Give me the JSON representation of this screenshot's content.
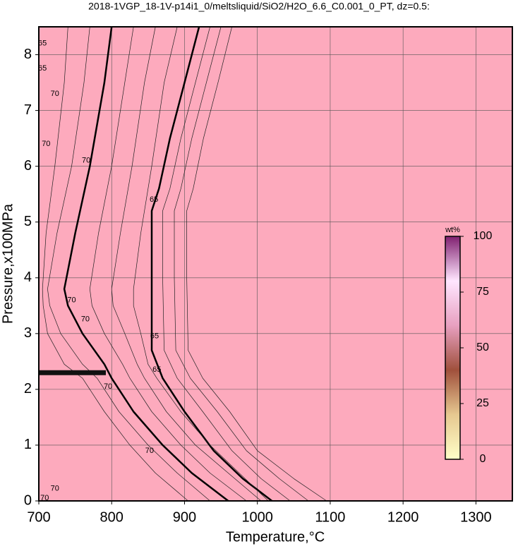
{
  "chart_data": {
    "type": "contour",
    "title": "2018-1VGP_18-1V-p14i1_0/meltsliquid/SiO2/H2O_6.6_C0.001_0_PT, dz=0.5:",
    "x_label": "Temperature,°C",
    "y_label": "Pressure,x100MPa",
    "xlim": [
      700,
      1350
    ],
    "xticks": [
      700,
      800,
      900,
      1000,
      1100,
      1200,
      1300
    ],
    "ylim": [
      0,
      8.5
    ],
    "yticks": [
      0,
      1,
      2,
      3,
      4,
      5,
      6,
      7,
      8
    ],
    "grid": true,
    "fill_color": "#fdaabd",
    "series": [
      {
        "name": "70",
        "color": "#000000",
        "width": 2.5,
        "x": [
          800,
          790,
          770,
          750,
          735,
          740,
          760,
          790,
          800,
          830,
          870,
          910,
          960
        ],
        "y": [
          8.5,
          7.5,
          6,
          4.8,
          3.8,
          3.5,
          3,
          2.45,
          2.2,
          1.6,
          1,
          0.5,
          0
        ]
      },
      {
        "name": "65",
        "color": "#000000",
        "width": 2.5,
        "x": [
          920,
          900,
          880,
          865,
          855,
          855,
          855,
          870,
          900,
          940,
          980,
          1020
        ],
        "y": [
          8.5,
          7.5,
          6.5,
          5.6,
          5.2,
          4,
          2.7,
          2.2,
          1.6,
          0.9,
          0.4,
          0
        ]
      },
      {
        "color": "#222222",
        "width": 0.7,
        "x": [
          935,
          915,
          895,
          880,
          870,
          870,
          872,
          890,
          925,
          965,
          1005,
          1045
        ],
        "y": [
          8.5,
          7.5,
          6.5,
          5.6,
          5.2,
          4,
          2.7,
          2.2,
          1.6,
          0.9,
          0.4,
          0
        ]
      },
      {
        "color": "#222222",
        "width": 0.7,
        "x": [
          950,
          930,
          910,
          895,
          886,
          886,
          888,
          908,
          945,
          985,
          1030,
          1070
        ],
        "y": [
          8.5,
          7.5,
          6.5,
          5.6,
          5.2,
          4,
          2.7,
          2.2,
          1.6,
          0.9,
          0.4,
          0
        ]
      },
      {
        "color": "#222222",
        "width": 0.7,
        "x": [
          965,
          946,
          926,
          912,
          903,
          903,
          905,
          925,
          962,
          1000,
          1050,
          1095
        ],
        "y": [
          8.5,
          7.5,
          6.5,
          5.6,
          5.2,
          4,
          2.7,
          2.2,
          1.6,
          0.9,
          0.4,
          0
        ]
      },
      {
        "color": "#222222",
        "width": 0.7,
        "x": [
          830,
          818,
          800,
          782,
          770,
          773,
          790,
          815,
          825,
          855,
          895,
          935,
          985
        ],
        "y": [
          8.5,
          7.5,
          6,
          4.8,
          3.8,
          3.5,
          3,
          2.45,
          2.2,
          1.6,
          1,
          0.5,
          0
        ]
      },
      {
        "color": "#222222",
        "width": 0.7,
        "x": [
          860,
          845,
          828,
          812,
          800,
          802,
          818,
          835,
          845,
          875,
          915,
          960,
          1005
        ],
        "y": [
          8.5,
          7.5,
          6,
          4.8,
          3.8,
          3.5,
          3,
          2.45,
          2.2,
          1.6,
          1,
          0.5,
          0
        ]
      },
      {
        "color": "#222222",
        "width": 0.7,
        "x": [
          890,
          872,
          855,
          840,
          830,
          830,
          840,
          850,
          862,
          895,
          935,
          975,
          1015
        ],
        "y": [
          8.5,
          7.5,
          6,
          4.8,
          3.8,
          3.5,
          3,
          2.45,
          2.2,
          1.6,
          1,
          0.5,
          0
        ]
      },
      {
        "color": "#222222",
        "width": 0.7,
        "x": [
          770,
          762,
          745,
          725,
          712,
          715,
          730,
          760,
          780,
          810,
          850,
          890,
          935
        ],
        "y": [
          8.5,
          7.5,
          6,
          4.8,
          3.8,
          3.5,
          3,
          2.45,
          2.2,
          1.6,
          1,
          0.5,
          0
        ]
      },
      {
        "color": "#222222",
        "width": 0.7,
        "x": [
          740,
          735,
          722,
          710,
          705,
          706,
          712,
          735,
          760,
          790,
          825,
          860,
          905
        ],
        "y": [
          8.5,
          7.5,
          6,
          4.8,
          3.8,
          3.5,
          3,
          2.45,
          2.2,
          1.6,
          1,
          0.5,
          0
        ]
      },
      {
        "color": "#111111",
        "width": 7,
        "x": [
          700,
          792
        ],
        "y": [
          2.3,
          2.3
        ]
      }
    ],
    "contour_labels": [
      {
        "text": "65",
        "x": 705,
        "y": 8.2
      },
      {
        "text": "65",
        "x": 705,
        "y": 7.75
      },
      {
        "text": "70",
        "x": 722,
        "y": 7.3
      },
      {
        "text": "70",
        "x": 710,
        "y": 6.4
      },
      {
        "text": "70",
        "x": 745,
        "y": 3.6
      },
      {
        "text": "70",
        "x": 795,
        "y": 2.05
      },
      {
        "text": "70",
        "x": 765,
        "y": 6.1
      },
      {
        "text": "65",
        "x": 858,
        "y": 5.4
      },
      {
        "text": "65",
        "x": 862,
        "y": 2.35
      },
      {
        "text": "70",
        "x": 852,
        "y": 0.9
      },
      {
        "text": "70",
        "x": 722,
        "y": 0.22
      },
      {
        "text": "70",
        "x": 708,
        "y": 0.05
      }
    ],
    "colorbar": {
      "label": "wt%",
      "lim": [
        0,
        100
      ],
      "ticks": [
        0,
        25,
        50,
        75,
        100
      ],
      "colors": [
        "#ffffc8",
        "#e6c890",
        "#a0503c",
        "#e8a0c0",
        "#ffe6ff",
        "#802070"
      ]
    }
  }
}
